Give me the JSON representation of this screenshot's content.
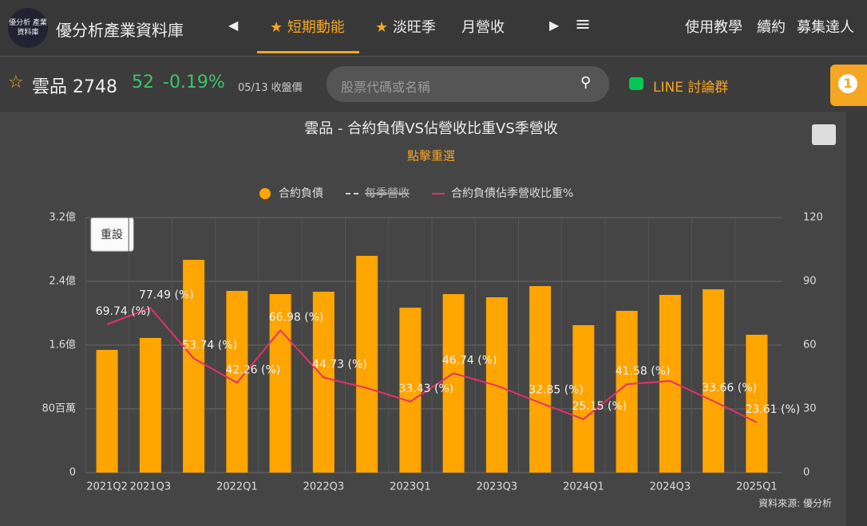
{
  "header": {
    "logo_text": "優分析 產業資料庫",
    "site_name": "優分析產業資料庫",
    "nav": [
      "短期動能",
      "淡旺季",
      "月營收"
    ],
    "links": [
      "使用教學",
      "續約",
      "募集達人"
    ]
  },
  "stock_bar": {
    "name": "雲品 2748",
    "price": "52",
    "change": "-0.19%",
    "date": "05/13 收盤價",
    "search_placeholder": "股票代碼或名稱",
    "line_group": "LINE 討論群",
    "badge": "1"
  },
  "reset_button": "重設",
  "source": "資料來源: 優分析",
  "chart_data": {
    "type": "bar",
    "title": "雲品 - 合約負債VS佔營收比重VS季營收",
    "subtitle": "點擊重選",
    "categories": [
      "2021Q2",
      "2021Q3",
      null,
      "2022Q1",
      null,
      "2022Q3",
      null,
      "2023Q1",
      null,
      "2023Q3",
      null,
      "2024Q1",
      null,
      "2024Q3",
      null,
      "2025Q1"
    ],
    "series": [
      {
        "name": "合約負債",
        "color": "#ffa500",
        "type": "bar",
        "values": [
          154000000,
          169000000,
          267000000,
          228000000,
          224000000,
          227000000,
          272000000,
          207000000,
          224000000,
          220000000,
          234000000,
          185000000,
          203000000,
          223000000,
          230000000,
          173000000
        ]
      },
      {
        "name": "每季營收",
        "color": "#cccccc",
        "type": "line",
        "visible": false
      },
      {
        "name": "合約負債佔季營收比重%",
        "color": "#e5306c",
        "type": "line",
        "axis": "y2",
        "values": [
          69.74,
          77.49,
          53.74,
          42.26,
          66.98,
          44.73,
          39.8,
          33.43,
          46.74,
          40.9,
          32.85,
          25.15,
          41.58,
          43.1,
          33.66,
          23.61
        ],
        "value_labels": [
          "69.74 (%)",
          "77.49 (%)",
          "53.74 (%)",
          "42.26 (%)",
          "66.98 (%)",
          "44.73 (%)",
          null,
          "33.43 (%)",
          "46.74 (%)",
          null,
          "32.85 (%)",
          "25.15 (%)",
          "41.58 (%)",
          null,
          "33.66 (%)",
          "23.61 (%)"
        ]
      }
    ],
    "ylim": [
      0,
      320000000
    ],
    "yticks": [
      0,
      {
        "value": 80000000,
        "label": "80百萬"
      },
      {
        "value": 160000000,
        "label": "1.6億"
      },
      {
        "value": 240000000,
        "label": "2.4億"
      },
      {
        "value": 320000000,
        "label": "3.2億"
      }
    ],
    "y2lim": [
      0,
      120
    ],
    "y2ticks": [
      0,
      30,
      60,
      90,
      120
    ],
    "grid": true,
    "legend": "top"
  }
}
